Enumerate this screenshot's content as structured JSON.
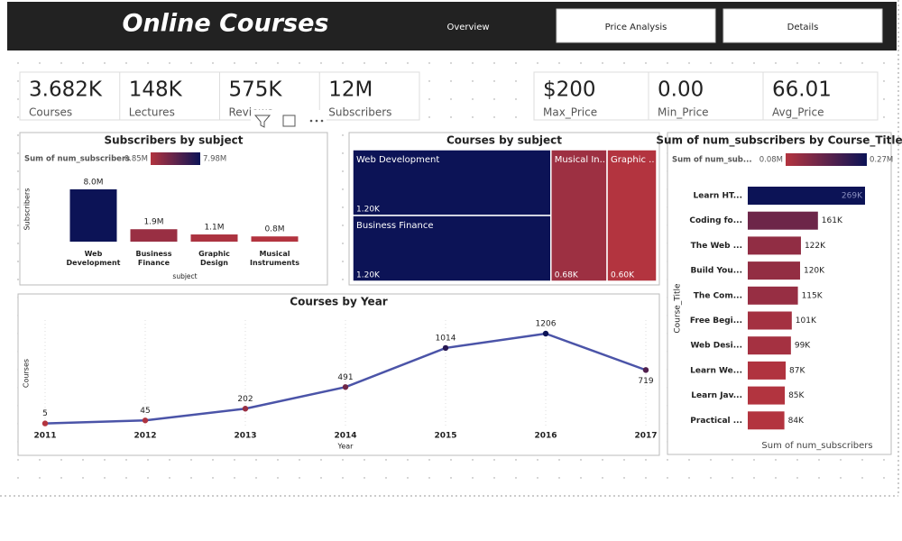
{
  "header": {
    "title": "Online Courses",
    "nav": [
      "Overview",
      "Price Analysis",
      "Details"
    ]
  },
  "kpis": [
    {
      "value": "3.682K",
      "label": "Courses"
    },
    {
      "value": "148K",
      "label": "Lectures"
    },
    {
      "value": "575K",
      "label": "Reviews"
    },
    {
      "value": "12M",
      "label": "Subscribers"
    }
  ],
  "price_kpis": [
    {
      "value": "$200",
      "label": "Max_Price"
    },
    {
      "value": "0.00",
      "label": "Min_Price"
    },
    {
      "value": "66.01",
      "label": "Avg_Price"
    }
  ],
  "chart_data": [
    {
      "type": "bar",
      "orientation": "vertical",
      "title": "Subscribers by subject",
      "legend_title": "Sum of num_subscribers",
      "legend_min": "0.85M",
      "legend_max": "7.98M",
      "categories": [
        "Web Development",
        "Business Finance",
        "Graphic Design",
        "Musical Instruments"
      ],
      "values": [
        8.0,
        1.9,
        1.1,
        0.8
      ],
      "value_labels": [
        "8.0M",
        "1.9M",
        "1.1M",
        "0.8M"
      ],
      "x_label": "subject",
      "y_label": "Subscribers",
      "colors": [
        "#b3343f",
        "#0c1356"
      ]
    },
    {
      "type": "treemap",
      "title": "Courses by subject",
      "categories": [
        "Web Development",
        "Business Finance",
        "Musical In...",
        "Graphic ..."
      ],
      "values": [
        1.2,
        1.2,
        0.68,
        0.6
      ],
      "value_labels": [
        "1.20K",
        "1.20K",
        "0.68K",
        "0.60K"
      ],
      "colors": [
        "#b3343f",
        "#0c1356"
      ]
    },
    {
      "type": "line",
      "title": "Courses by Year",
      "x": [
        2011,
        2012,
        2013,
        2014,
        2015,
        2016,
        2017
      ],
      "values": [
        5,
        45,
        202,
        491,
        1014,
        1206,
        719
      ],
      "x_label": "Year",
      "y_label": "Courses",
      "color": "#4b54a8",
      "colors": [
        "#b3343f",
        "#0c1356"
      ]
    },
    {
      "type": "bar",
      "orientation": "horizontal",
      "title": "Sum of num_subscribers by Course_Title",
      "legend_title": "Sum of num_sub...",
      "legend_min": "0.08M",
      "legend_max": "0.27M",
      "categories": [
        "Learn HT...",
        "Coding fo...",
        "The Web ...",
        "Build You...",
        "The Com...",
        "Free Begi...",
        "Web Desi...",
        "Learn We...",
        "Learn Jav...",
        "Practical ..."
      ],
      "values": [
        269,
        161,
        122,
        120,
        115,
        101,
        99,
        87,
        85,
        84
      ],
      "value_labels": [
        "269K",
        "161K",
        "122K",
        "120K",
        "115K",
        "101K",
        "99K",
        "87K",
        "85K",
        "84K"
      ],
      "x_label": "Sum of num_subscribers",
      "y_label": "Course_Title",
      "colors": [
        "#b3343f",
        "#0c1356"
      ]
    }
  ]
}
